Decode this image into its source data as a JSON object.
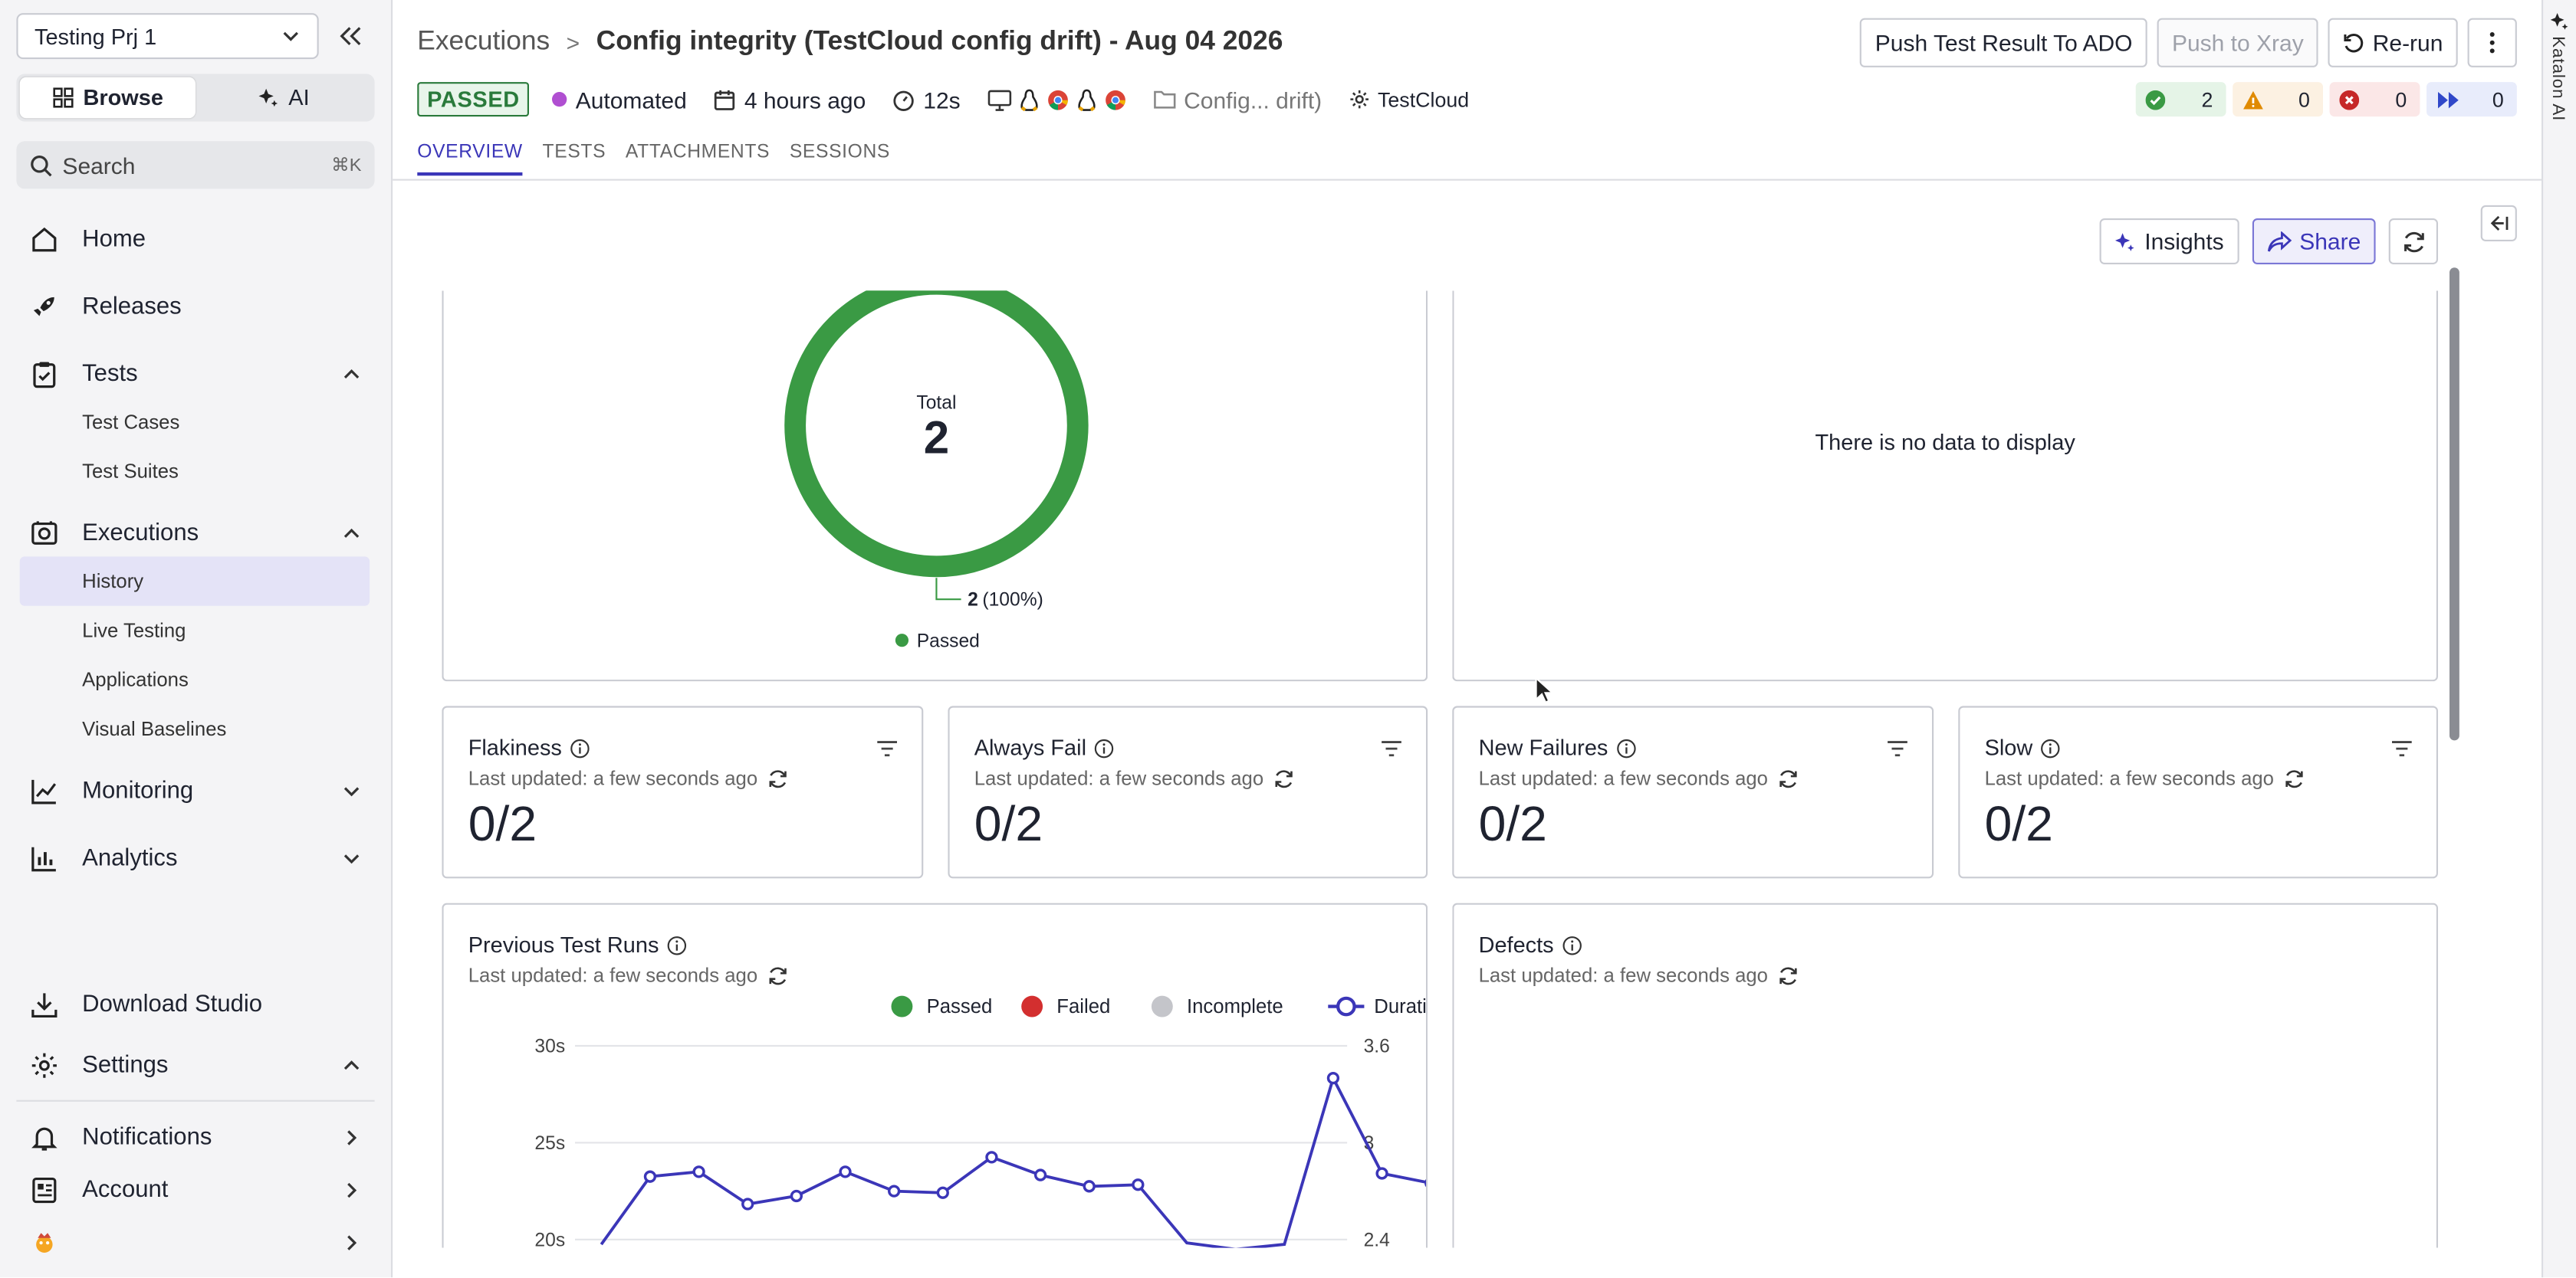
{
  "sidebar": {
    "project": "Testing Prj 1",
    "modes": [
      "Browse",
      "AI"
    ],
    "search_placeholder": "Search",
    "search_shortcut": "⌘K",
    "nav": {
      "home": "Home",
      "releases": "Releases",
      "tests": "Tests",
      "test_cases": "Test Cases",
      "test_suites": "Test Suites",
      "executions": "Executions",
      "history": "History",
      "live_testing": "Live Testing",
      "applications": "Applications",
      "visual_baselines": "Visual Baselines",
      "monitoring": "Monitoring",
      "analytics": "Analytics",
      "download_studio": "Download Studio",
      "settings": "Settings",
      "notifications": "Notifications",
      "account": "Account"
    }
  },
  "header": {
    "breadcrumb_root": "Executions",
    "breadcrumb_separator": ">",
    "title": "Config integrity (TestCloud config drift) - Aug 04 2026",
    "buttons": {
      "push_ado": "Push Test Result To ADO",
      "push_xray": "Push to Xray",
      "rerun": "Re-run"
    },
    "status": "PASSED",
    "type": "Automated",
    "started": "4 hours ago",
    "duration": "12s",
    "config_short": "Config... drift)",
    "env": "TestCloud",
    "counts": {
      "passed": "2",
      "warning": "0",
      "failed": "0",
      "skipped": "0"
    },
    "tabs": [
      "OVERVIEW",
      "TESTS",
      "ATTACHMENTS",
      "SESSIONS"
    ]
  },
  "toolbar": {
    "insights": "Insights",
    "share": "Share"
  },
  "donut": {
    "center_label": "Total",
    "center_value": "2",
    "slice_value": "2",
    "slice_pct": "(100%)",
    "legend": "Passed",
    "color": "#3a9a44"
  },
  "no_data_text": "There is no data to display",
  "metrics": [
    {
      "title": "Flakiness",
      "updated": "Last updated: a few seconds ago",
      "value": "0/2"
    },
    {
      "title": "Always Fail",
      "updated": "Last updated: a few seconds ago",
      "value": "0/2"
    },
    {
      "title": "New Failures",
      "updated": "Last updated: a few seconds ago",
      "value": "0/2"
    },
    {
      "title": "Slow",
      "updated": "Last updated: a few seconds ago",
      "value": "0/2"
    }
  ],
  "prev_runs": {
    "title": "Previous Test Runs",
    "updated": "Last updated: a few seconds ago"
  },
  "defects": {
    "title": "Defects",
    "updated": "Last updated: a few seconds ago"
  },
  "katalon_ai": "Katalon AI",
  "chart_data": {
    "type": "line",
    "legend": [
      "Passed",
      "Failed",
      "Incomplete",
      "Duration"
    ],
    "legend_colors": [
      "#3a9a44",
      "#d32f2f",
      "#c4c5ca",
      "#3b36b8"
    ],
    "y_left_ticks": [
      "30s",
      "25s",
      "20s"
    ],
    "y_right_ticks": [
      "3.6",
      "3",
      "2.4"
    ],
    "y_left_range": [
      20,
      30
    ],
    "y_right_range": [
      2.4,
      3.6
    ],
    "series": [
      {
        "name": "Duration",
        "axis": "right",
        "values": [
          2.37,
          2.79,
          2.82,
          2.62,
          2.67,
          2.82,
          2.7,
          2.69,
          2.91,
          2.8,
          2.73,
          2.74,
          2.38,
          2.34,
          2.37,
          3.4,
          2.81,
          2.75
        ]
      }
    ],
    "visible_points": [
      1,
      2,
      3,
      4,
      5,
      6,
      7,
      8,
      9,
      10,
      11,
      15,
      16,
      17
    ],
    "grid": true,
    "legend_position": "top-right"
  }
}
